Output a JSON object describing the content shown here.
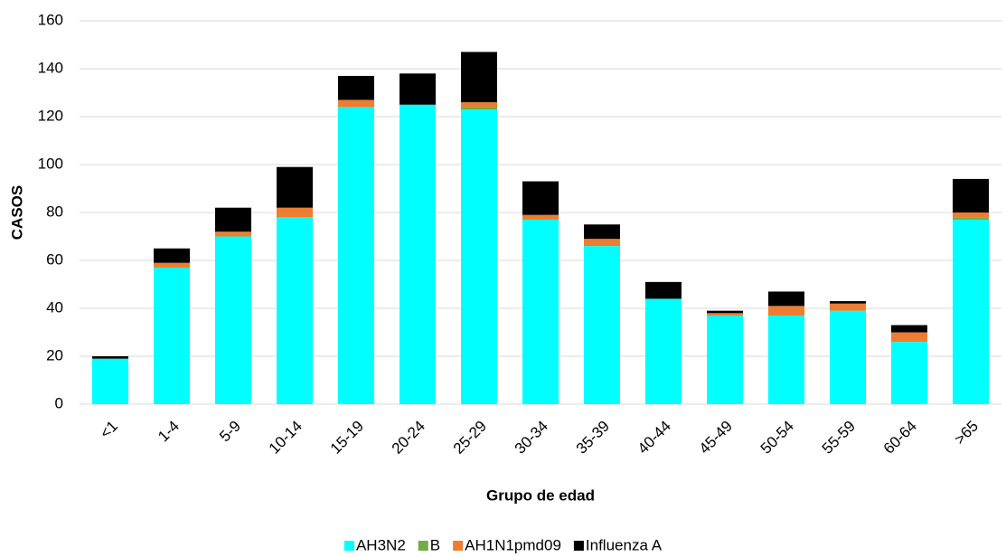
{
  "chart_data": {
    "type": "stacked_bar",
    "x_label": "Grupo de edad",
    "y_label": "CASOS",
    "categories": [
      "<1",
      "1-4",
      "5-9",
      "10-14",
      "15-19",
      "20-24",
      "25-29",
      "30-34",
      "35-39",
      "40-44",
      "45-49",
      "50-54",
      "55-59",
      "60-64",
      ">65"
    ],
    "series": [
      {
        "name": "AH3N2",
        "color": "#00ffff",
        "values": [
          19,
          57,
          70,
          78,
          124,
          125,
          123,
          77,
          66,
          44,
          37,
          37,
          39,
          26,
          77
        ]
      },
      {
        "name": "B",
        "color": "#70ad47",
        "values": [
          0,
          0,
          0,
          0,
          0,
          0,
          1,
          0,
          0,
          0,
          0,
          0,
          0,
          0,
          1
        ]
      },
      {
        "name": "AH1N1pmd09",
        "color": "#ed7d31",
        "values": [
          0,
          2,
          2,
          4,
          3,
          0,
          2,
          2,
          3,
          0,
          1,
          4,
          3,
          4,
          2
        ]
      },
      {
        "name": "Influenza A",
        "color": "#000000",
        "values": [
          1,
          6,
          10,
          17,
          10,
          13,
          21,
          14,
          6,
          7,
          1,
          6,
          1,
          3,
          14
        ]
      }
    ],
    "ylim": [
      0,
      160
    ],
    "yticks": [
      0,
      20,
      40,
      60,
      80,
      100,
      120,
      140,
      160
    ],
    "grid": true,
    "legend": "bottom"
  }
}
